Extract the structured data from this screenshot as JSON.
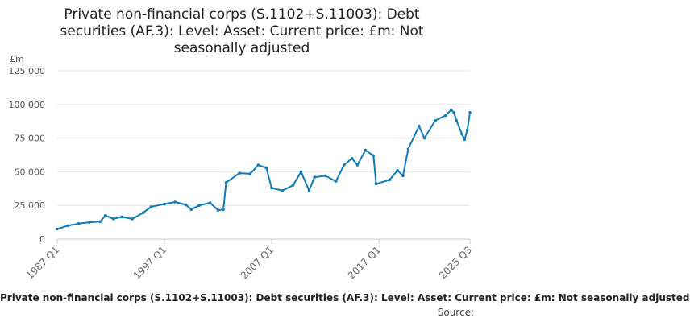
{
  "chart_data": {
    "type": "line",
    "title": "Private non-financial corps (S.1102+S.11003): Debt securities (AF.3): Level: Asset: Current price: £m: Not seasonally adjusted",
    "ylabel": "£m",
    "ylim": [
      0,
      125000
    ],
    "y_ticks": [
      "0",
      "25 000",
      "50 000",
      "75 000",
      "100 000",
      "125 000"
    ],
    "x_tick_labels": [
      "1987 Q1",
      "1997 Q1",
      "2007 Q1",
      "2017 Q1",
      "2025 Q3"
    ],
    "grid": true,
    "legend": "bottom",
    "series_color": "#0f7cb8",
    "series": [
      {
        "name": "Private non-financial corps (S.1102+S.11003): Debt securities (AF.3): Level: Asset: Current price: £m: Not seasonally adjusted",
        "points": [
          [
            "1987 Q1",
            7500
          ],
          [
            "1988 Q1",
            10000
          ],
          [
            "1989 Q1",
            11500
          ],
          [
            "1990 Q1",
            12500
          ],
          [
            "1991 Q1",
            13000
          ],
          [
            "1991 Q3",
            17500
          ],
          [
            "1992 Q2",
            15000
          ],
          [
            "1993 Q1",
            16500
          ],
          [
            "1994 Q1",
            15000
          ],
          [
            "1995 Q1",
            19500
          ],
          [
            "1995 Q4",
            24000
          ],
          [
            "1997 Q1",
            26000
          ],
          [
            "1998 Q1",
            27500
          ],
          [
            "1999 Q1",
            25500
          ],
          [
            "1999 Q3",
            22000
          ],
          [
            "2000 Q2",
            25000
          ],
          [
            "2001 Q2",
            27000
          ],
          [
            "2002 Q1",
            21500
          ],
          [
            "2002 Q3",
            22000
          ],
          [
            "2002 Q4",
            42000
          ],
          [
            "2004 Q1",
            49000
          ],
          [
            "2005 Q1",
            48500
          ],
          [
            "2005 Q4",
            55000
          ],
          [
            "2006 Q3",
            53000
          ],
          [
            "2007 Q1",
            38000
          ],
          [
            "2008 Q1",
            36000
          ],
          [
            "2009 Q1",
            40000
          ],
          [
            "2009 Q4",
            50000
          ],
          [
            "2010 Q3",
            36000
          ],
          [
            "2011 Q1",
            46000
          ],
          [
            "2012 Q1",
            47000
          ],
          [
            "2013 Q1",
            43000
          ],
          [
            "2013 Q4",
            55000
          ],
          [
            "2014 Q3",
            60000
          ],
          [
            "2015 Q1",
            55000
          ],
          [
            "2015 Q4",
            66000
          ],
          [
            "2016 Q3",
            62000
          ],
          [
            "2016 Q4",
            41000
          ],
          [
            "2018 Q1",
            44000
          ],
          [
            "2018 Q4",
            51000
          ],
          [
            "2019 Q2",
            47000
          ],
          [
            "2019 Q4",
            67000
          ],
          [
            "2020 Q4",
            84000
          ],
          [
            "2021 Q2",
            75000
          ],
          [
            "2022 Q2",
            88000
          ],
          [
            "2023 Q2",
            92000
          ],
          [
            "2023 Q4",
            96000
          ],
          [
            "2024 Q1",
            94000
          ],
          [
            "2024 Q2",
            88000
          ],
          [
            "2024 Q4",
            78000
          ],
          [
            "2025 Q1",
            74000
          ],
          [
            "2025 Q2",
            81000
          ],
          [
            "2025 Q3",
            94000
          ]
        ]
      }
    ]
  },
  "legend_text": "Private non-financial corps (S.1102+S.11003): Debt securities (AF.3): Level: Asset: Current price: £m: Not seasonally adjusted",
  "source_label": "Source:"
}
